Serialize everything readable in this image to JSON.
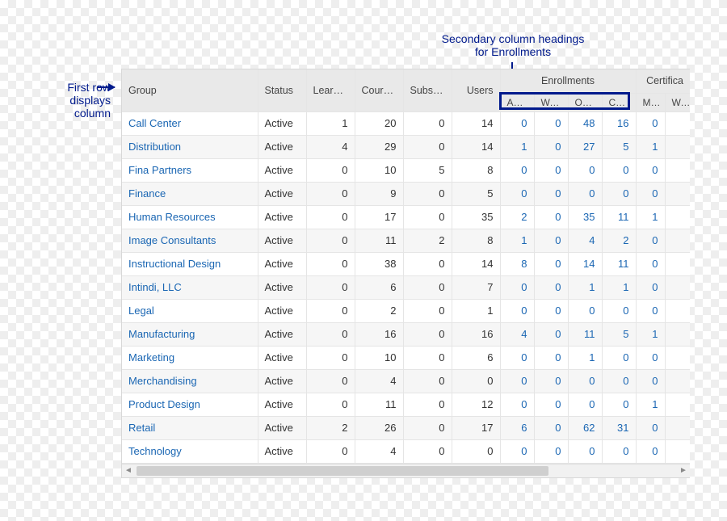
{
  "annotations": {
    "secondary": "Secondary column headings\nfor Enrollments",
    "firstrow": "First row\ndisplays\ncolumn"
  },
  "colors": {
    "annotation": "#001a8c",
    "header_bg": "#e9e9e9",
    "row_alt_bg": "#f6f6f6",
    "border": "#e5e5e5",
    "link": "#1a66b3",
    "text": "#333333"
  },
  "headers": {
    "group": "Group",
    "status": "Status",
    "learning": "Learnin…",
    "courses": "Courses",
    "subscriptions": "Subscri…",
    "users": "Users",
    "enrollments": "Enrollments",
    "certifica": "Certifica",
    "sub": {
      "active": "Active",
      "warn": "Warn",
      "odue": "ODue",
      "cmpl": "Cmpl",
      "met": "Met",
      "warn2": "Warn"
    }
  },
  "rows": [
    {
      "group": "Call Center",
      "status": "Active",
      "learning": 1,
      "courses": 20,
      "subscr": 0,
      "users": 14,
      "active": 0,
      "warn": 0,
      "odue": 48,
      "cmpl": 16,
      "met": 0
    },
    {
      "group": "Distribution",
      "status": "Active",
      "learning": 4,
      "courses": 29,
      "subscr": 0,
      "users": 14,
      "active": 1,
      "warn": 0,
      "odue": 27,
      "cmpl": 5,
      "met": 1
    },
    {
      "group": "Fina Partners",
      "status": "Active",
      "learning": 0,
      "courses": 10,
      "subscr": 5,
      "users": 8,
      "active": 0,
      "warn": 0,
      "odue": 0,
      "cmpl": 0,
      "met": 0
    },
    {
      "group": "Finance",
      "status": "Active",
      "learning": 0,
      "courses": 9,
      "subscr": 0,
      "users": 5,
      "active": 0,
      "warn": 0,
      "odue": 0,
      "cmpl": 0,
      "met": 0
    },
    {
      "group": "Human Resources",
      "status": "Active",
      "learning": 0,
      "courses": 17,
      "subscr": 0,
      "users": 35,
      "active": 2,
      "warn": 0,
      "odue": 35,
      "cmpl": 11,
      "met": 1
    },
    {
      "group": "Image Consultants",
      "status": "Active",
      "learning": 0,
      "courses": 11,
      "subscr": 2,
      "users": 8,
      "active": 1,
      "warn": 0,
      "odue": 4,
      "cmpl": 2,
      "met": 0
    },
    {
      "group": "Instructional Design",
      "status": "Active",
      "learning": 0,
      "courses": 38,
      "subscr": 0,
      "users": 14,
      "active": 8,
      "warn": 0,
      "odue": 14,
      "cmpl": 11,
      "met": 0
    },
    {
      "group": "Intindi, LLC",
      "status": "Active",
      "learning": 0,
      "courses": 6,
      "subscr": 0,
      "users": 7,
      "active": 0,
      "warn": 0,
      "odue": 1,
      "cmpl": 1,
      "met": 0
    },
    {
      "group": "Legal",
      "status": "Active",
      "learning": 0,
      "courses": 2,
      "subscr": 0,
      "users": 1,
      "active": 0,
      "warn": 0,
      "odue": 0,
      "cmpl": 0,
      "met": 0
    },
    {
      "group": "Manufacturing",
      "status": "Active",
      "learning": 0,
      "courses": 16,
      "subscr": 0,
      "users": 16,
      "active": 4,
      "warn": 0,
      "odue": 11,
      "cmpl": 5,
      "met": 1
    },
    {
      "group": "Marketing",
      "status": "Active",
      "learning": 0,
      "courses": 10,
      "subscr": 0,
      "users": 6,
      "active": 0,
      "warn": 0,
      "odue": 1,
      "cmpl": 0,
      "met": 0
    },
    {
      "group": "Merchandising",
      "status": "Active",
      "learning": 0,
      "courses": 4,
      "subscr": 0,
      "users": 0,
      "active": 0,
      "warn": 0,
      "odue": 0,
      "cmpl": 0,
      "met": 0
    },
    {
      "group": "Product Design",
      "status": "Active",
      "learning": 0,
      "courses": 11,
      "subscr": 0,
      "users": 12,
      "active": 0,
      "warn": 0,
      "odue": 0,
      "cmpl": 0,
      "met": 1
    },
    {
      "group": "Retail",
      "status": "Active",
      "learning": 2,
      "courses": 26,
      "subscr": 0,
      "users": 17,
      "active": 6,
      "warn": 0,
      "odue": 62,
      "cmpl": 31,
      "met": 0
    },
    {
      "group": "Technology",
      "status": "Active",
      "learning": 0,
      "courses": 4,
      "subscr": 0,
      "users": 0,
      "active": 0,
      "warn": 0,
      "odue": 0,
      "cmpl": 0,
      "met": 0
    }
  ]
}
